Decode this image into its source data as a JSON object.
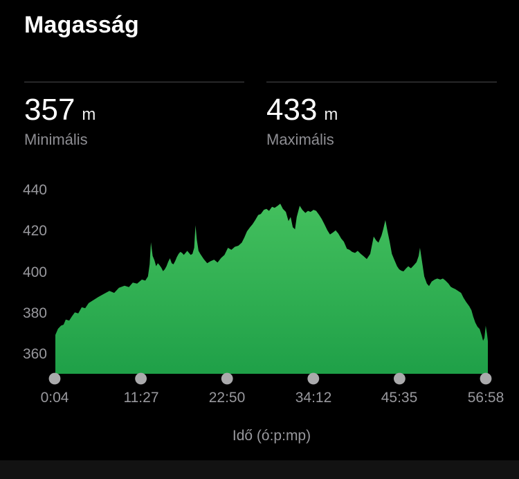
{
  "title": "Magasság",
  "stats": {
    "min": {
      "value": "357",
      "unit": "m",
      "label": "Minimális"
    },
    "max": {
      "value": "433",
      "unit": "m",
      "label": "Maximális"
    }
  },
  "chart_data": {
    "type": "area",
    "title": "Magasság",
    "xlabel": "Idő (ó:p:mp)",
    "ylabel": "",
    "x_ticks": [
      "0:04",
      "11:27",
      "22:50",
      "34:12",
      "45:35",
      "56:58"
    ],
    "y_ticks": [
      360,
      380,
      400,
      420,
      440
    ],
    "ylim": [
      351,
      445
    ],
    "min_elevation_m": 357,
    "max_elevation_m": 433,
    "grid": false,
    "legend": false,
    "colors": {
      "area_top": "#46c25f",
      "area_bottom": "#1fa048",
      "dot": "#aaaaac",
      "axis_text": "#98989d",
      "background": "#000000"
    },
    "profile": [
      [
        0.0,
        369.5
      ],
      [
        0.006,
        372.5
      ],
      [
        0.013,
        374
      ],
      [
        0.019,
        374.5
      ],
      [
        0.024,
        377
      ],
      [
        0.032,
        376.5
      ],
      [
        0.038,
        378.5
      ],
      [
        0.045,
        380.5
      ],
      [
        0.053,
        380
      ],
      [
        0.061,
        383
      ],
      [
        0.069,
        382.5
      ],
      [
        0.077,
        385
      ],
      [
        0.088,
        386.5
      ],
      [
        0.099,
        388
      ],
      [
        0.112,
        389.5
      ],
      [
        0.125,
        391
      ],
      [
        0.136,
        390
      ],
      [
        0.147,
        392.5
      ],
      [
        0.16,
        393.5
      ],
      [
        0.17,
        392.8
      ],
      [
        0.179,
        395
      ],
      [
        0.189,
        394.5
      ],
      [
        0.2,
        396.5
      ],
      [
        0.208,
        396
      ],
      [
        0.214,
        398
      ],
      [
        0.218,
        404
      ],
      [
        0.221,
        414.7
      ],
      [
        0.225,
        408
      ],
      [
        0.229,
        406
      ],
      [
        0.233,
        403
      ],
      [
        0.237,
        404.5
      ],
      [
        0.241,
        403.5
      ],
      [
        0.245,
        402.3
      ],
      [
        0.249,
        400.6
      ],
      [
        0.253,
        401.5
      ],
      [
        0.257,
        403
      ],
      [
        0.261,
        405.2
      ],
      [
        0.265,
        406.9
      ],
      [
        0.269,
        404.5
      ],
      [
        0.273,
        403.9
      ],
      [
        0.277,
        405.5
      ],
      [
        0.281,
        407.5
      ],
      [
        0.285,
        409
      ],
      [
        0.289,
        410
      ],
      [
        0.293,
        409.5
      ],
      [
        0.297,
        408.5
      ],
      [
        0.301,
        409.5
      ],
      [
        0.305,
        410.5
      ],
      [
        0.309,
        409.5
      ],
      [
        0.313,
        408.5
      ],
      [
        0.317,
        409
      ],
      [
        0.321,
        412
      ],
      [
        0.324,
        423
      ],
      [
        0.327,
        416
      ],
      [
        0.331,
        410.5
      ],
      [
        0.335,
        409
      ],
      [
        0.343,
        406.5
      ],
      [
        0.351,
        404.5
      ],
      [
        0.359,
        405.5
      ],
      [
        0.367,
        406.2
      ],
      [
        0.375,
        404.8
      ],
      [
        0.383,
        407
      ],
      [
        0.391,
        408.5
      ],
      [
        0.399,
        412
      ],
      [
        0.407,
        411
      ],
      [
        0.415,
        412.5
      ],
      [
        0.423,
        413
      ],
      [
        0.431,
        414.5
      ],
      [
        0.437,
        417
      ],
      [
        0.443,
        420
      ],
      [
        0.45,
        422
      ],
      [
        0.456,
        423.5
      ],
      [
        0.462,
        425.5
      ],
      [
        0.469,
        428
      ],
      [
        0.475,
        428.5
      ],
      [
        0.482,
        430.5
      ],
      [
        0.488,
        431
      ],
      [
        0.494,
        430
      ],
      [
        0.501,
        432
      ],
      [
        0.507,
        431.5
      ],
      [
        0.514,
        432.5
      ],
      [
        0.52,
        433.5
      ],
      [
        0.526,
        431
      ],
      [
        0.533,
        429.5
      ],
      [
        0.539,
        425
      ],
      [
        0.544,
        427
      ],
      [
        0.549,
        422
      ],
      [
        0.554,
        421
      ],
      [
        0.558,
        427
      ],
      [
        0.565,
        432.5
      ],
      [
        0.571,
        430.5
      ],
      [
        0.578,
        429
      ],
      [
        0.584,
        430
      ],
      [
        0.59,
        429.5
      ],
      [
        0.597,
        430.5
      ],
      [
        0.603,
        430
      ],
      [
        0.61,
        428
      ],
      [
        0.616,
        426
      ],
      [
        0.622,
        423.5
      ],
      [
        0.629,
        420.5
      ],
      [
        0.635,
        418.5
      ],
      [
        0.642,
        419.5
      ],
      [
        0.648,
        420.5
      ],
      [
        0.654,
        419
      ],
      [
        0.661,
        416.5
      ],
      [
        0.667,
        415
      ],
      [
        0.674,
        411.5
      ],
      [
        0.68,
        411
      ],
      [
        0.686,
        410
      ],
      [
        0.693,
        409.5
      ],
      [
        0.699,
        410.5
      ],
      [
        0.706,
        409
      ],
      [
        0.712,
        408
      ],
      [
        0.72,
        406.5
      ],
      [
        0.728,
        409
      ],
      [
        0.736,
        417.5
      ],
      [
        0.742,
        415.5
      ],
      [
        0.747,
        414.5
      ],
      [
        0.754,
        418
      ],
      [
        0.758,
        421
      ],
      [
        0.763,
        425.5
      ],
      [
        0.768,
        420
      ],
      [
        0.773,
        415
      ],
      [
        0.778,
        409
      ],
      [
        0.784,
        406
      ],
      [
        0.79,
        403
      ],
      [
        0.795,
        401.5
      ],
      [
        0.8,
        400.8
      ],
      [
        0.805,
        400.5
      ],
      [
        0.811,
        402
      ],
      [
        0.816,
        403
      ],
      [
        0.822,
        402
      ],
      [
        0.829,
        403.5
      ],
      [
        0.835,
        405
      ],
      [
        0.84,
        408
      ],
      [
        0.843,
        412
      ],
      [
        0.848,
        405
      ],
      [
        0.853,
        398
      ],
      [
        0.859,
        394.5
      ],
      [
        0.864,
        393.3
      ],
      [
        0.87,
        395.5
      ],
      [
        0.877,
        396.5
      ],
      [
        0.883,
        397
      ],
      [
        0.89,
        396.5
      ],
      [
        0.896,
        397
      ],
      [
        0.902,
        396
      ],
      [
        0.909,
        394.5
      ],
      [
        0.914,
        393
      ],
      [
        0.918,
        392.5
      ],
      [
        0.925,
        391.8
      ],
      [
        0.931,
        391
      ],
      [
        0.938,
        390
      ],
      [
        0.944,
        387.5
      ],
      [
        0.95,
        385.5
      ],
      [
        0.957,
        383.5
      ],
      [
        0.962,
        381.5
      ],
      [
        0.966,
        378.5
      ],
      [
        0.971,
        375.5
      ],
      [
        0.976,
        373.5
      ],
      [
        0.981,
        372.4
      ],
      [
        0.986,
        369
      ],
      [
        0.989,
        366.6
      ],
      [
        0.992,
        368
      ],
      [
        0.995,
        374
      ],
      [
        0.998,
        370
      ],
      [
        1.0,
        366.5
      ]
    ]
  }
}
